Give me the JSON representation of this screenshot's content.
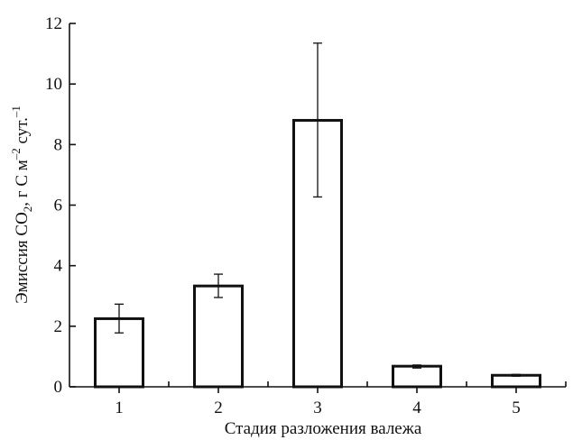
{
  "chart_data": {
    "type": "bar",
    "categories": [
      "1",
      "2",
      "3",
      "4",
      "5"
    ],
    "values": [
      2.25,
      3.33,
      8.8,
      0.68,
      0.38
    ],
    "error_low": [
      1.78,
      2.95,
      6.27,
      0.62,
      0.35
    ],
    "error_high": [
      2.73,
      3.72,
      11.35,
      0.72,
      0.41
    ],
    "xlabel": "Стадия разложения валежа",
    "ylabel": {
      "part1": "Эмиссия CO",
      "sub": "2",
      "part2": ", г С м",
      "sup1": "–2",
      "part3": " сут.",
      "sup2": "–1"
    },
    "ylim": [
      0,
      12
    ],
    "yticks": [
      0,
      2,
      4,
      6,
      8,
      10,
      12
    ],
    "grid": false,
    "legend": "none"
  }
}
